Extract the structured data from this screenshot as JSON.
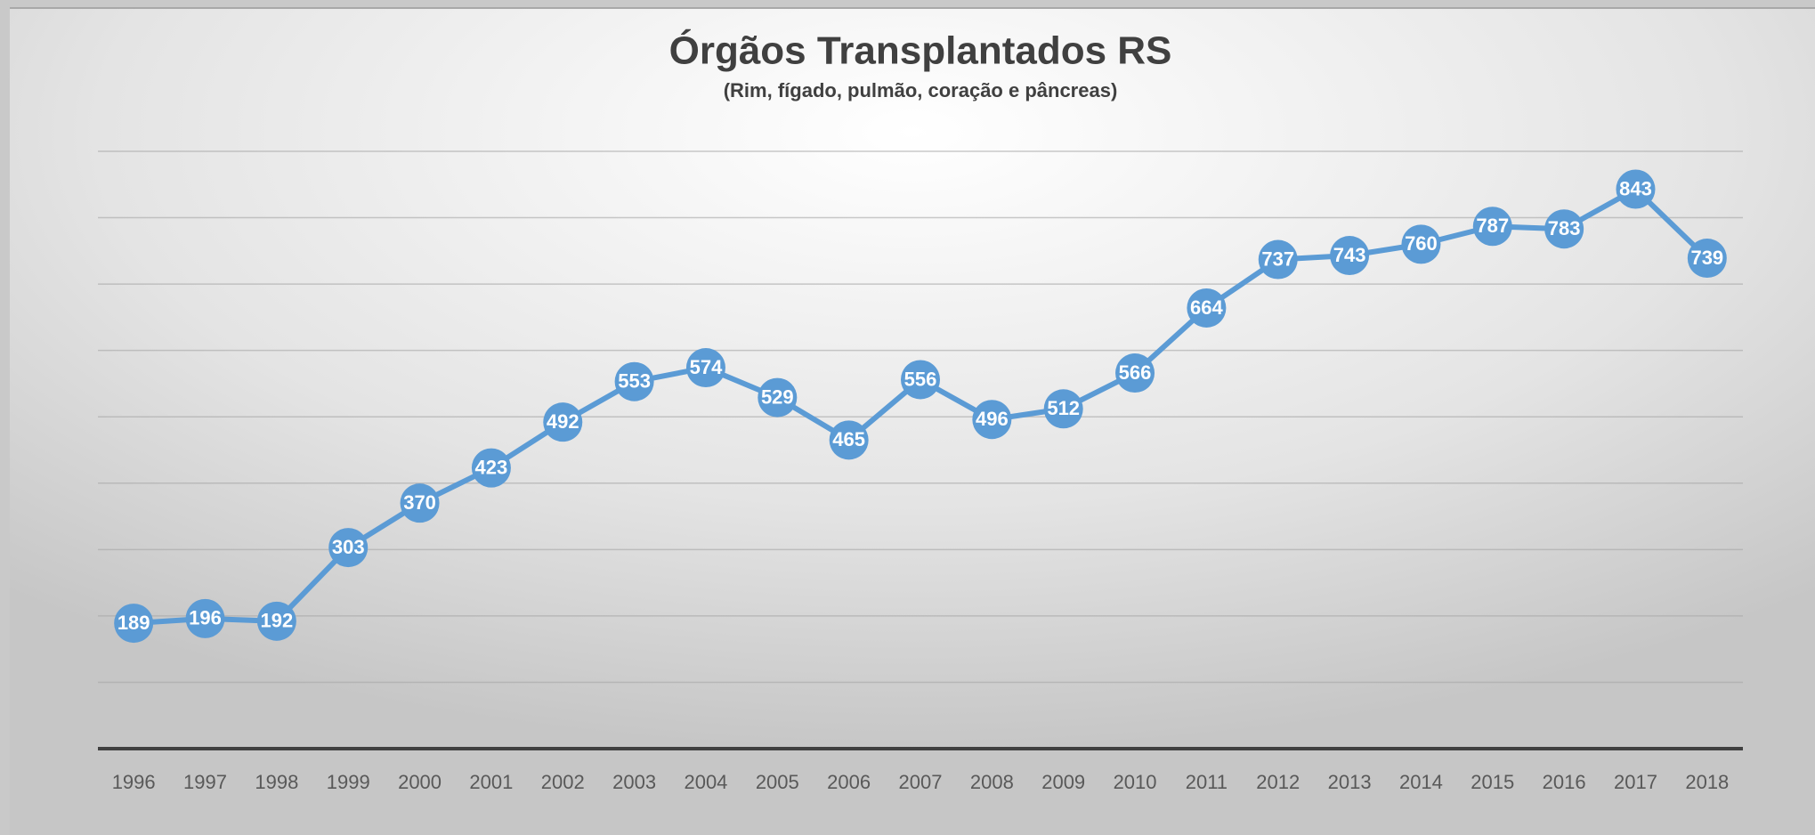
{
  "chart_data": {
    "type": "line",
    "title": "Órgãos Transplantados RS",
    "subtitle": "(Rim, fígado, pulmão, coração e pâncreas)",
    "categories": [
      "1996",
      "1997",
      "1998",
      "1999",
      "2000",
      "2001",
      "2002",
      "2003",
      "2004",
      "2005",
      "2006",
      "2007",
      "2008",
      "2009",
      "2010",
      "2011",
      "2012",
      "2013",
      "2014",
      "2015",
      "2016",
      "2017",
      "2018"
    ],
    "series": [
      {
        "name": "Órgãos Transplantados",
        "color": "#5b9bd5",
        "values": [
          189,
          196,
          192,
          303,
          370,
          423,
          492,
          553,
          574,
          529,
          465,
          556,
          496,
          512,
          566,
          664,
          737,
          743,
          760,
          787,
          783,
          843,
          739
        ]
      }
    ],
    "ylim": [
      0,
      900
    ],
    "yticks": [
      0,
      100,
      200,
      300,
      400,
      500,
      600,
      700,
      800,
      900
    ],
    "grid": true
  }
}
